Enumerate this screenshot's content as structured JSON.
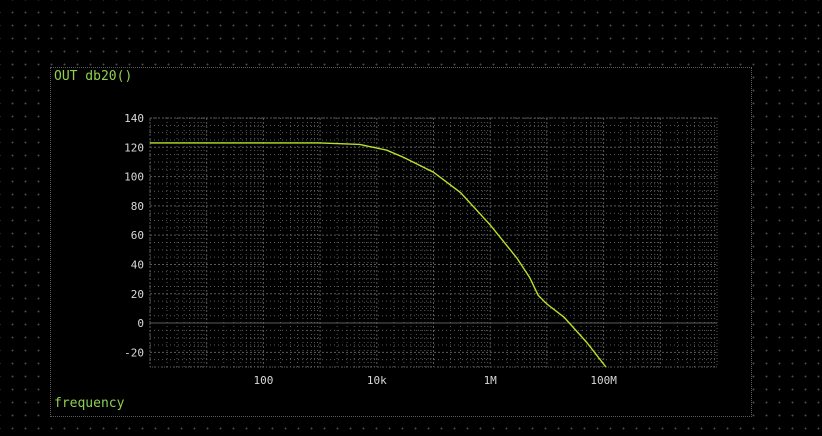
{
  "chart_data": {
    "type": "line",
    "title": "",
    "ylabel": "OUT db20()",
    "xlabel": "frequency",
    "xscale": "log",
    "xlim": [
      1,
      10000000000
    ],
    "ylim": [
      -30,
      140
    ],
    "yticks": [
      140,
      120,
      100,
      80,
      60,
      40,
      20,
      0,
      -20
    ],
    "xticks": [
      {
        "value": 100,
        "label": "100"
      },
      {
        "value": 10000,
        "label": "10k"
      },
      {
        "value": 1000000,
        "label": "1M"
      },
      {
        "value": 100000000,
        "label": "100M"
      }
    ],
    "grid": true,
    "colors": {
      "trace": "#b8e22a",
      "axis_label": "#8fd14f",
      "tick_label": "#d9d9d9",
      "grid": "#5a5a5a"
    },
    "series": [
      {
        "x": [
          1,
          100,
          1000,
          5000,
          15000,
          30000,
          100000,
          300000,
          1000000,
          3000000,
          5000000,
          7000000,
          10000000,
          20000000,
          50000000,
          110000000
        ],
        "y": [
          123,
          123,
          123,
          122,
          118,
          113,
          103,
          89,
          67,
          44,
          31,
          19,
          13,
          4,
          -13,
          -30
        ]
      }
    ]
  }
}
